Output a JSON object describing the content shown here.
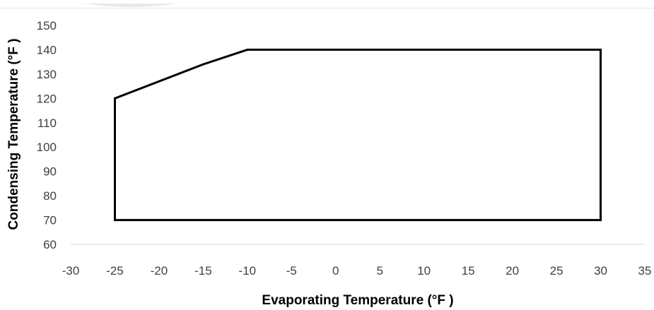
{
  "chart_data": {
    "type": "line",
    "title": "",
    "xlabel": "Evaporating Temperature (°F )",
    "ylabel": "Condensing Temperature (°F )",
    "xlim": [
      -30,
      35
    ],
    "ylim": [
      60,
      150
    ],
    "xticks": [
      "-30",
      "-25",
      "-20",
      "-15",
      "-10",
      "-5",
      "0",
      "5",
      "10",
      "15",
      "20",
      "25",
      "30",
      "35"
    ],
    "yticks": [
      "60",
      "70",
      "80",
      "90",
      "100",
      "110",
      "120",
      "130",
      "140",
      "150"
    ],
    "grid": false,
    "legend": "none",
    "series": [
      {
        "x": [
          -25,
          -15,
          -10,
          30,
          30,
          -25,
          -25
        ],
        "y": [
          120,
          134,
          140,
          140,
          70,
          70,
          120
        ],
        "color": "#000000"
      }
    ]
  }
}
